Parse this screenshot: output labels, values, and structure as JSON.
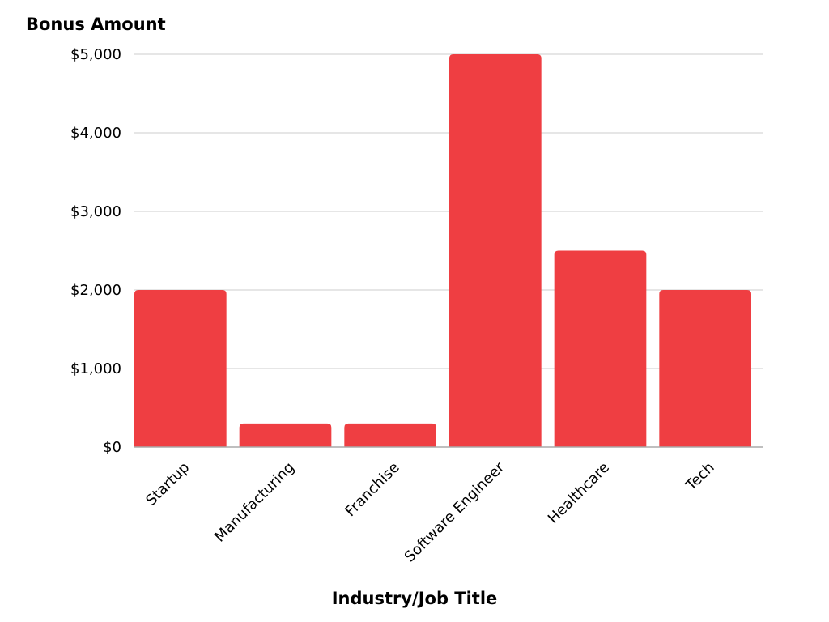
{
  "chart_data": {
    "type": "bar",
    "title": "",
    "ylabel": "Bonus Amount",
    "xlabel": "Industry/Job Title",
    "categories": [
      "Startup",
      "Manufacturing",
      "Franchise",
      "Software Engineer",
      "Healthcare",
      "Tech"
    ],
    "values": [
      2000,
      300,
      300,
      5000,
      2500,
      2000
    ],
    "ylim": [
      0,
      5000
    ],
    "yticks": [
      0,
      1000,
      2000,
      3000,
      4000,
      5000
    ],
    "ytick_labels": [
      "$0",
      "$1,000",
      "$2,000",
      "$3,000",
      "$4,000",
      "$5,000"
    ],
    "bar_color": "#ef3e42",
    "grid": true,
    "legend": "none"
  }
}
